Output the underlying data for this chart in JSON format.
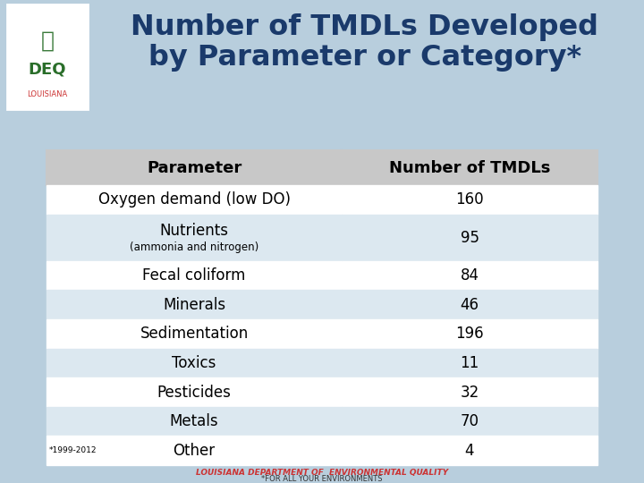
{
  "title_line1": "Number of TMDLs Developed",
  "title_line2": "by Parameter or Category*",
  "title_color": "#1a3a6b",
  "col1_header": "Parameter",
  "col2_header": "Number of TMDLs",
  "rows": [
    {
      "param": "Oxygen demand (low DO)",
      "value": "160",
      "multiline": false
    },
    {
      "param": "Nutrients",
      "param2": "(ammonia and nitrogen)",
      "value": "95",
      "multiline": true
    },
    {
      "param": "Fecal coliform",
      "value": "84",
      "multiline": false
    },
    {
      "param": "Minerals",
      "value": "46",
      "multiline": false
    },
    {
      "param": "Sedimentation",
      "value": "196",
      "multiline": false
    },
    {
      "param": "Toxics",
      "value": "11",
      "multiline": false
    },
    {
      "param": "Pesticides",
      "value": "32",
      "multiline": false
    },
    {
      "param": "Metals",
      "value": "70",
      "multiline": false
    },
    {
      "param": "Other",
      "value": "4",
      "multiline": false,
      "footnote": "*1999-2012"
    }
  ],
  "header_bg": "#c8c8c8",
  "row_bg_white": "#ffffff",
  "row_bg_light": "#dce8f0",
  "table_border_color": "#666666",
  "footer_text1": "LOUISIANA DEPARTMENT OF  ENVIRONMENTAL QUALITY",
  "footer_text2": "*FOR ALL YOUR ENVIRONMENTS",
  "bg_color": "#b8cedd",
  "logo_border": "#cc3333",
  "logo_text_deq": "#2a6e2a",
  "logo_text_louisiana": "#cc3333"
}
